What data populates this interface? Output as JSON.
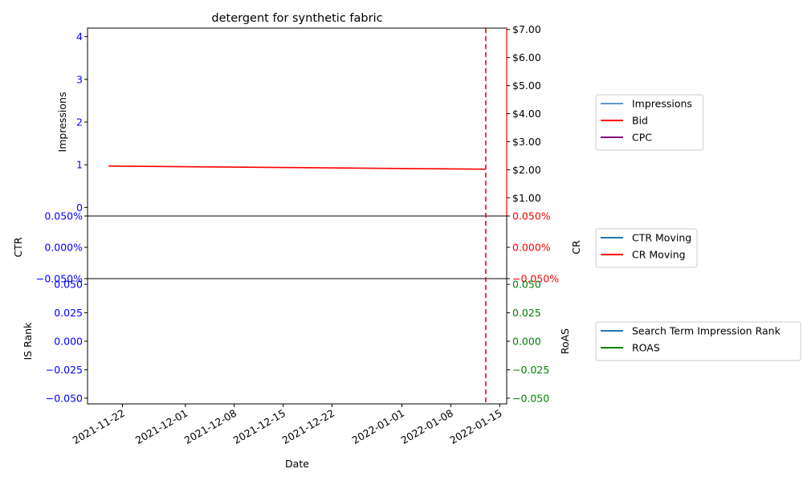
{
  "chart_data": {
    "type": "line",
    "title": "detergent for synthetic fabric",
    "xlabel": "Date",
    "x_ticks": [
      "2021-11-22",
      "2021-12-01",
      "2021-12-08",
      "2021-12-15",
      "2021-12-22",
      "2022-01-01",
      "2022-01-08",
      "2022-01-15"
    ],
    "x_range": [
      "2021-11-17",
      "2022-01-16"
    ],
    "marker_date": "2022-01-13",
    "marker_color": "#ff0000",
    "panels": [
      {
        "id": "top",
        "left_axis": {
          "label": "Impressions",
          "color": "#0000ff",
          "range": [
            -0.2,
            4.2
          ],
          "ticks": [
            "0",
            "1",
            "2",
            "3",
            "4"
          ]
        },
        "right_axis": {
          "label": "",
          "color": "#000000",
          "spine_color": "#ff0000",
          "range": [
            0.35,
            7.05
          ],
          "ticks": [
            "$1.00",
            "$2.00",
            "$3.00",
            "$4.00",
            "$5.00",
            "$6.00",
            "$7.00"
          ]
        },
        "series": [
          {
            "name": "Impressions",
            "color": "#5a9bd5",
            "axis": "left",
            "x": [],
            "y": []
          },
          {
            "name": "Bid",
            "color": "#ff0000",
            "axis": "right",
            "x": [
              "2021-11-20",
              "2022-01-13"
            ],
            "y": [
              2.13,
              2.02
            ]
          },
          {
            "name": "CPC",
            "color": "#800080",
            "axis": "right",
            "x": [],
            "y": []
          }
        ]
      },
      {
        "id": "middle",
        "left_axis": {
          "label": "CTR",
          "color": "#0000ff",
          "range": [
            -0.05,
            0.05
          ],
          "ticks": [
            "−0.050%",
            "0.000%",
            "0.050%"
          ]
        },
        "right_axis": {
          "label": "CR",
          "color": "#ff0000",
          "range": [
            -0.05,
            0.05
          ],
          "ticks": [
            "−0.050%",
            "0.000%",
            "0.050%"
          ]
        },
        "series": [
          {
            "name": "CTR Moving",
            "color": "#1f77b4",
            "axis": "left",
            "x": [],
            "y": []
          },
          {
            "name": "CR Moving",
            "color": "#ff0000",
            "axis": "right",
            "x": [],
            "y": []
          }
        ]
      },
      {
        "id": "bottom",
        "left_axis": {
          "label": "IS Rank",
          "color": "#0000ff",
          "range": [
            -0.055,
            0.055
          ],
          "ticks": [
            "−0.050",
            "−0.025",
            "0.000",
            "0.025",
            "0.050"
          ]
        },
        "right_axis": {
          "label": "RoAS",
          "color": "#008000",
          "range": [
            -0.055,
            0.055
          ],
          "ticks": [
            "−0.050",
            "−0.025",
            "0.000",
            "0.025",
            "0.050"
          ]
        },
        "series": [
          {
            "name": "Search Term Impression Rank",
            "color": "#1f77b4",
            "axis": "left",
            "x": [],
            "y": []
          },
          {
            "name": "ROAS",
            "color": "#008000",
            "axis": "right",
            "x": [],
            "y": []
          }
        ]
      }
    ],
    "legend_placement": "outside-right"
  }
}
